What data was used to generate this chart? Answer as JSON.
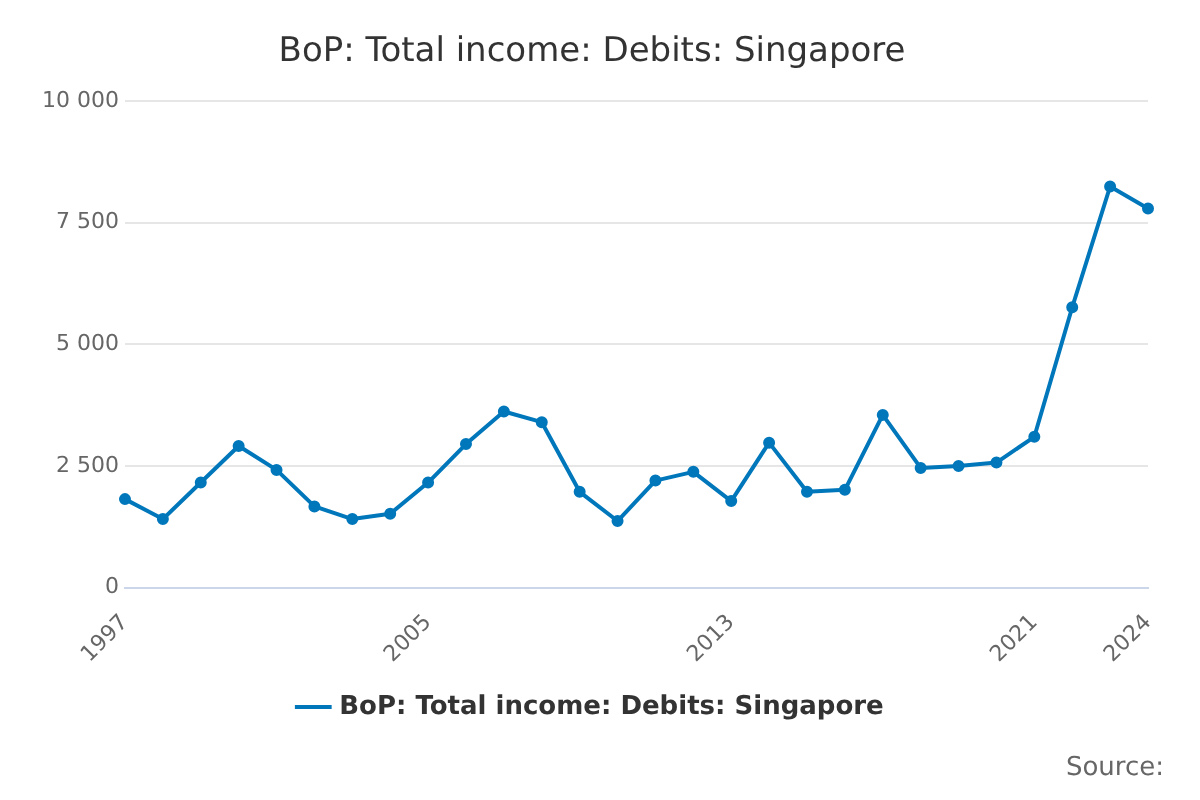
{
  "chart_data": {
    "type": "line",
    "title": "BoP: Total income: Debits: Singapore",
    "x": [
      1997,
      1998,
      1999,
      2000,
      2001,
      2002,
      2003,
      2004,
      2005,
      2006,
      2007,
      2008,
      2009,
      2010,
      2011,
      2012,
      2013,
      2014,
      2015,
      2016,
      2017,
      2018,
      2019,
      2020,
      2021,
      2022,
      2023,
      2024
    ],
    "series": [
      {
        "name": "BoP: Total income: Debits: Singapore",
        "color": "#0077bb",
        "values": [
          1820,
          1410,
          2160,
          2910,
          2420,
          1670,
          1410,
          1520,
          2160,
          2950,
          3620,
          3400,
          1970,
          1370,
          2200,
          2380,
          1780,
          2980,
          1970,
          2010,
          3550,
          2460,
          2500,
          2570,
          3100,
          5760,
          8240,
          7790
        ]
      }
    ],
    "xlim": [
      1997,
      2024
    ],
    "xticks": [
      1997,
      2005,
      2013,
      2021,
      2024
    ],
    "ylim": [
      0,
      10000
    ],
    "yticks": [
      {
        "value": 0,
        "label": "0"
      },
      {
        "value": 2500,
        "label": "2 500"
      },
      {
        "value": 5000,
        "label": "5 000"
      },
      {
        "value": 7500,
        "label": "7 500"
      },
      {
        "value": 10000,
        "label": "10 000"
      }
    ],
    "grid": "y",
    "legend": "bottom",
    "marker": "circle",
    "line_style": "solid",
    "annotations": [
      "Source:"
    ]
  }
}
